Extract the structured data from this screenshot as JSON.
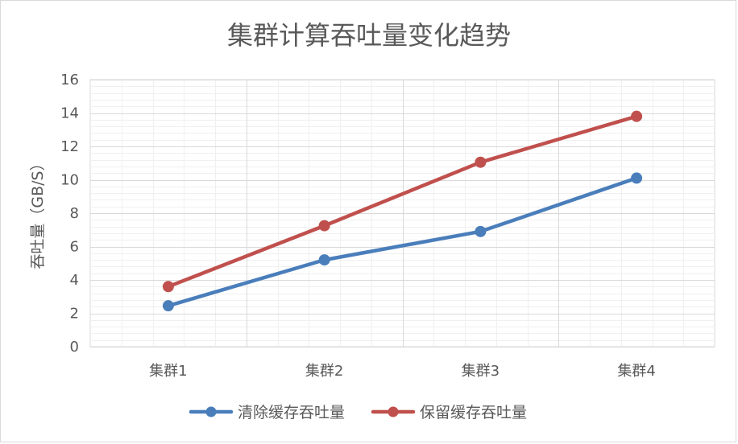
{
  "chart_data": {
    "type": "line",
    "title": "集群计算吞吐量变化趋势",
    "xlabel": "",
    "ylabel": "吞吐量（GB/S）",
    "categories": [
      "集群1",
      "集群2",
      "集群3",
      "集群4"
    ],
    "ylim": [
      0,
      16
    ],
    "yticks": [
      0,
      2,
      4,
      6,
      8,
      10,
      12,
      14,
      16
    ],
    "grid": true,
    "legend_position": "bottom",
    "series": [
      {
        "name": "清除缓存吞吐量",
        "color": "#4a7ebb",
        "values": [
          2.45,
          5.2,
          6.9,
          10.1
        ]
      },
      {
        "name": "保留缓存吞吐量",
        "color": "#c0504d",
        "values": [
          3.6,
          7.25,
          11.05,
          13.8
        ]
      }
    ]
  }
}
